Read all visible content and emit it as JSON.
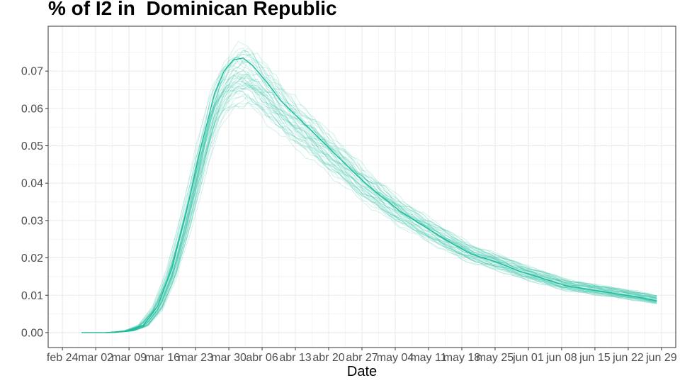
{
  "chart_data": {
    "type": "line",
    "title": "% of I2 in  Dominican Republic",
    "xlabel": "Date",
    "ylabel": "",
    "x_ticks": [
      "feb 24",
      "mar 02",
      "mar 09",
      "mar 16",
      "mar 23",
      "mar 30",
      "abr 06",
      "abr 13",
      "abr 20",
      "abr 27",
      "may 04",
      "may 11",
      "may 18",
      "may 25",
      "jun 01",
      "jun 08",
      "jun 15",
      "jun 22",
      "jun 29"
    ],
    "xlim": [
      "2020-02-21",
      "2020-07-02"
    ],
    "ylim": [
      -0.004,
      0.082
    ],
    "y_ticks": [
      0.0,
      0.01,
      0.02,
      0.03,
      0.04,
      0.05,
      0.06,
      0.07
    ],
    "y_tick_labels": [
      "0.00",
      "0.01",
      "0.02",
      "0.03",
      "0.04",
      "0.05",
      "0.06",
      "0.07"
    ],
    "grid": true,
    "legend": "none",
    "colors": {
      "series": "#1abc9c",
      "ensemble": "#1abc9c",
      "grid": "#ebebeb",
      "panel_border": "#333333"
    },
    "series": [
      {
        "role": "median",
        "x": [
          "2020-02-28",
          "2020-03-05",
          "2020-03-09",
          "2020-03-12",
          "2020-03-15",
          "2020-03-18",
          "2020-03-21",
          "2020-03-24",
          "2020-03-27",
          "2020-03-29",
          "2020-03-31",
          "2020-04-02",
          "2020-04-04",
          "2020-04-07",
          "2020-04-10",
          "2020-04-14",
          "2020-04-18",
          "2020-04-22",
          "2020-04-26",
          "2020-04-30",
          "2020-05-05",
          "2020-05-10",
          "2020-05-15",
          "2020-05-20",
          "2020-05-25",
          "2020-05-30",
          "2020-06-04",
          "2020-06-09",
          "2020-06-14",
          "2020-06-19",
          "2020-06-24",
          "2020-06-28"
        ],
        "y": [
          0.0,
          0.0,
          0.0005,
          0.002,
          0.007,
          0.017,
          0.032,
          0.049,
          0.064,
          0.07,
          0.073,
          0.0735,
          0.0715,
          0.067,
          0.062,
          0.057,
          0.052,
          0.047,
          0.042,
          0.0375,
          0.0325,
          0.0285,
          0.0245,
          0.021,
          0.019,
          0.0165,
          0.0145,
          0.0125,
          0.0115,
          0.0105,
          0.0095,
          0.0085
        ]
      }
    ],
    "ensemble": {
      "count": 48,
      "peak_range": [
        0.061,
        0.077
      ],
      "end_range": [
        0.0075,
        0.0097
      ]
    }
  }
}
